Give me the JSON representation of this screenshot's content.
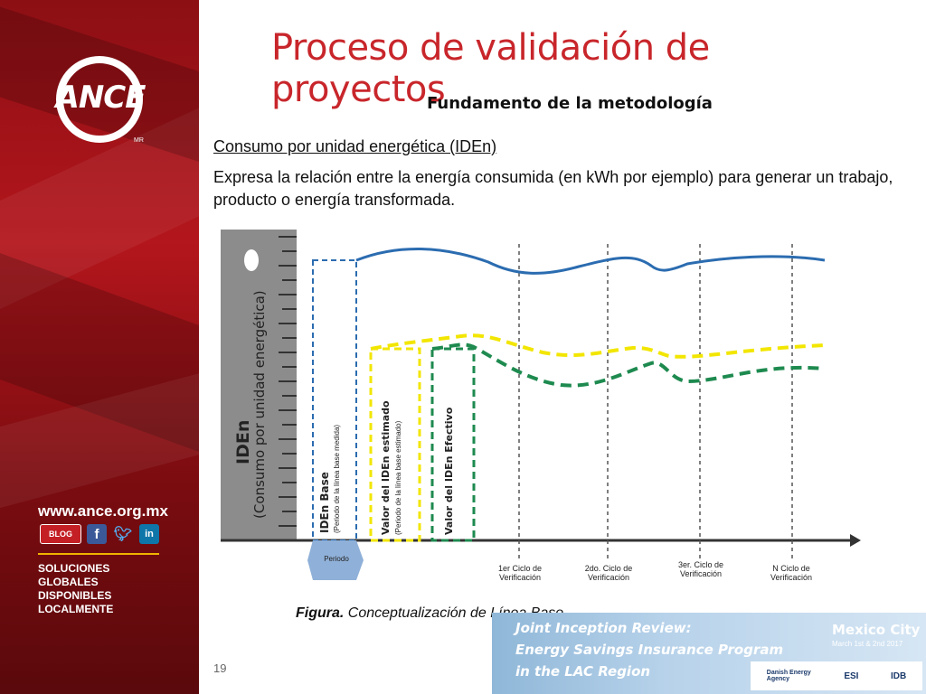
{
  "slide": {
    "title": "Proceso de validación de proyectos",
    "subtitle": "Fundamento de la metodología",
    "section_heading": "Consumo por unidad energética (IDEn)",
    "paragraph": "Expresa la relación entre la energía consumida (en kWh por ejemplo) para generar un trabajo, producto o energía transformada.",
    "page_number": "19"
  },
  "sidebar": {
    "logo_text": "ANCE",
    "logo_mark": "MR",
    "url": "www.ance.org.mx",
    "social": {
      "blog": "BLOG",
      "facebook": "f",
      "twitter": "t",
      "linkedin": "in"
    },
    "tagline_line1": "SOLUCIONES GLOBALES",
    "tagline_line2": "DISPONIBLES LOCALMENTE"
  },
  "figure": {
    "y_axis_title": "IDEn",
    "y_axis_subtitle": "(Consumo por unidad energética)",
    "period_label": "Periodo",
    "box_baseline": {
      "title": "IDEn Base",
      "note": "(Periodo de la línea base medida)"
    },
    "box_estimated": {
      "title": "Valor del IDEn estimado",
      "note": "(Periodo de la línea base estimado)"
    },
    "box_effective": {
      "title": "Valor del IDEn Efectivo"
    },
    "x_labels": [
      "1er Ciclo de Verificación",
      "2do. Ciclo de Verificación",
      "3er. Ciclo de Verificación",
      "N Ciclo de Verificación"
    ],
    "colors": {
      "blue_line": "#2b6cb0",
      "yellow_dashed": "#f2e600",
      "green_dashed": "#1e8a4f",
      "axis_bar": "#8c8c8c",
      "period_shape": "#8fb0d8"
    }
  },
  "caption": {
    "bold": "Figura.",
    "text": " Conceptualización de Línea Base."
  },
  "banner": {
    "line1": "Joint Inception Review:",
    "line2": "Energy Savings Insurance Program",
    "line3": "in the LAC Region",
    "city": "Mexico City",
    "dates": "March 1st & 2nd 2017",
    "sponsors": [
      "Danish Energy Agency",
      "ESI",
      "IDB"
    ]
  }
}
